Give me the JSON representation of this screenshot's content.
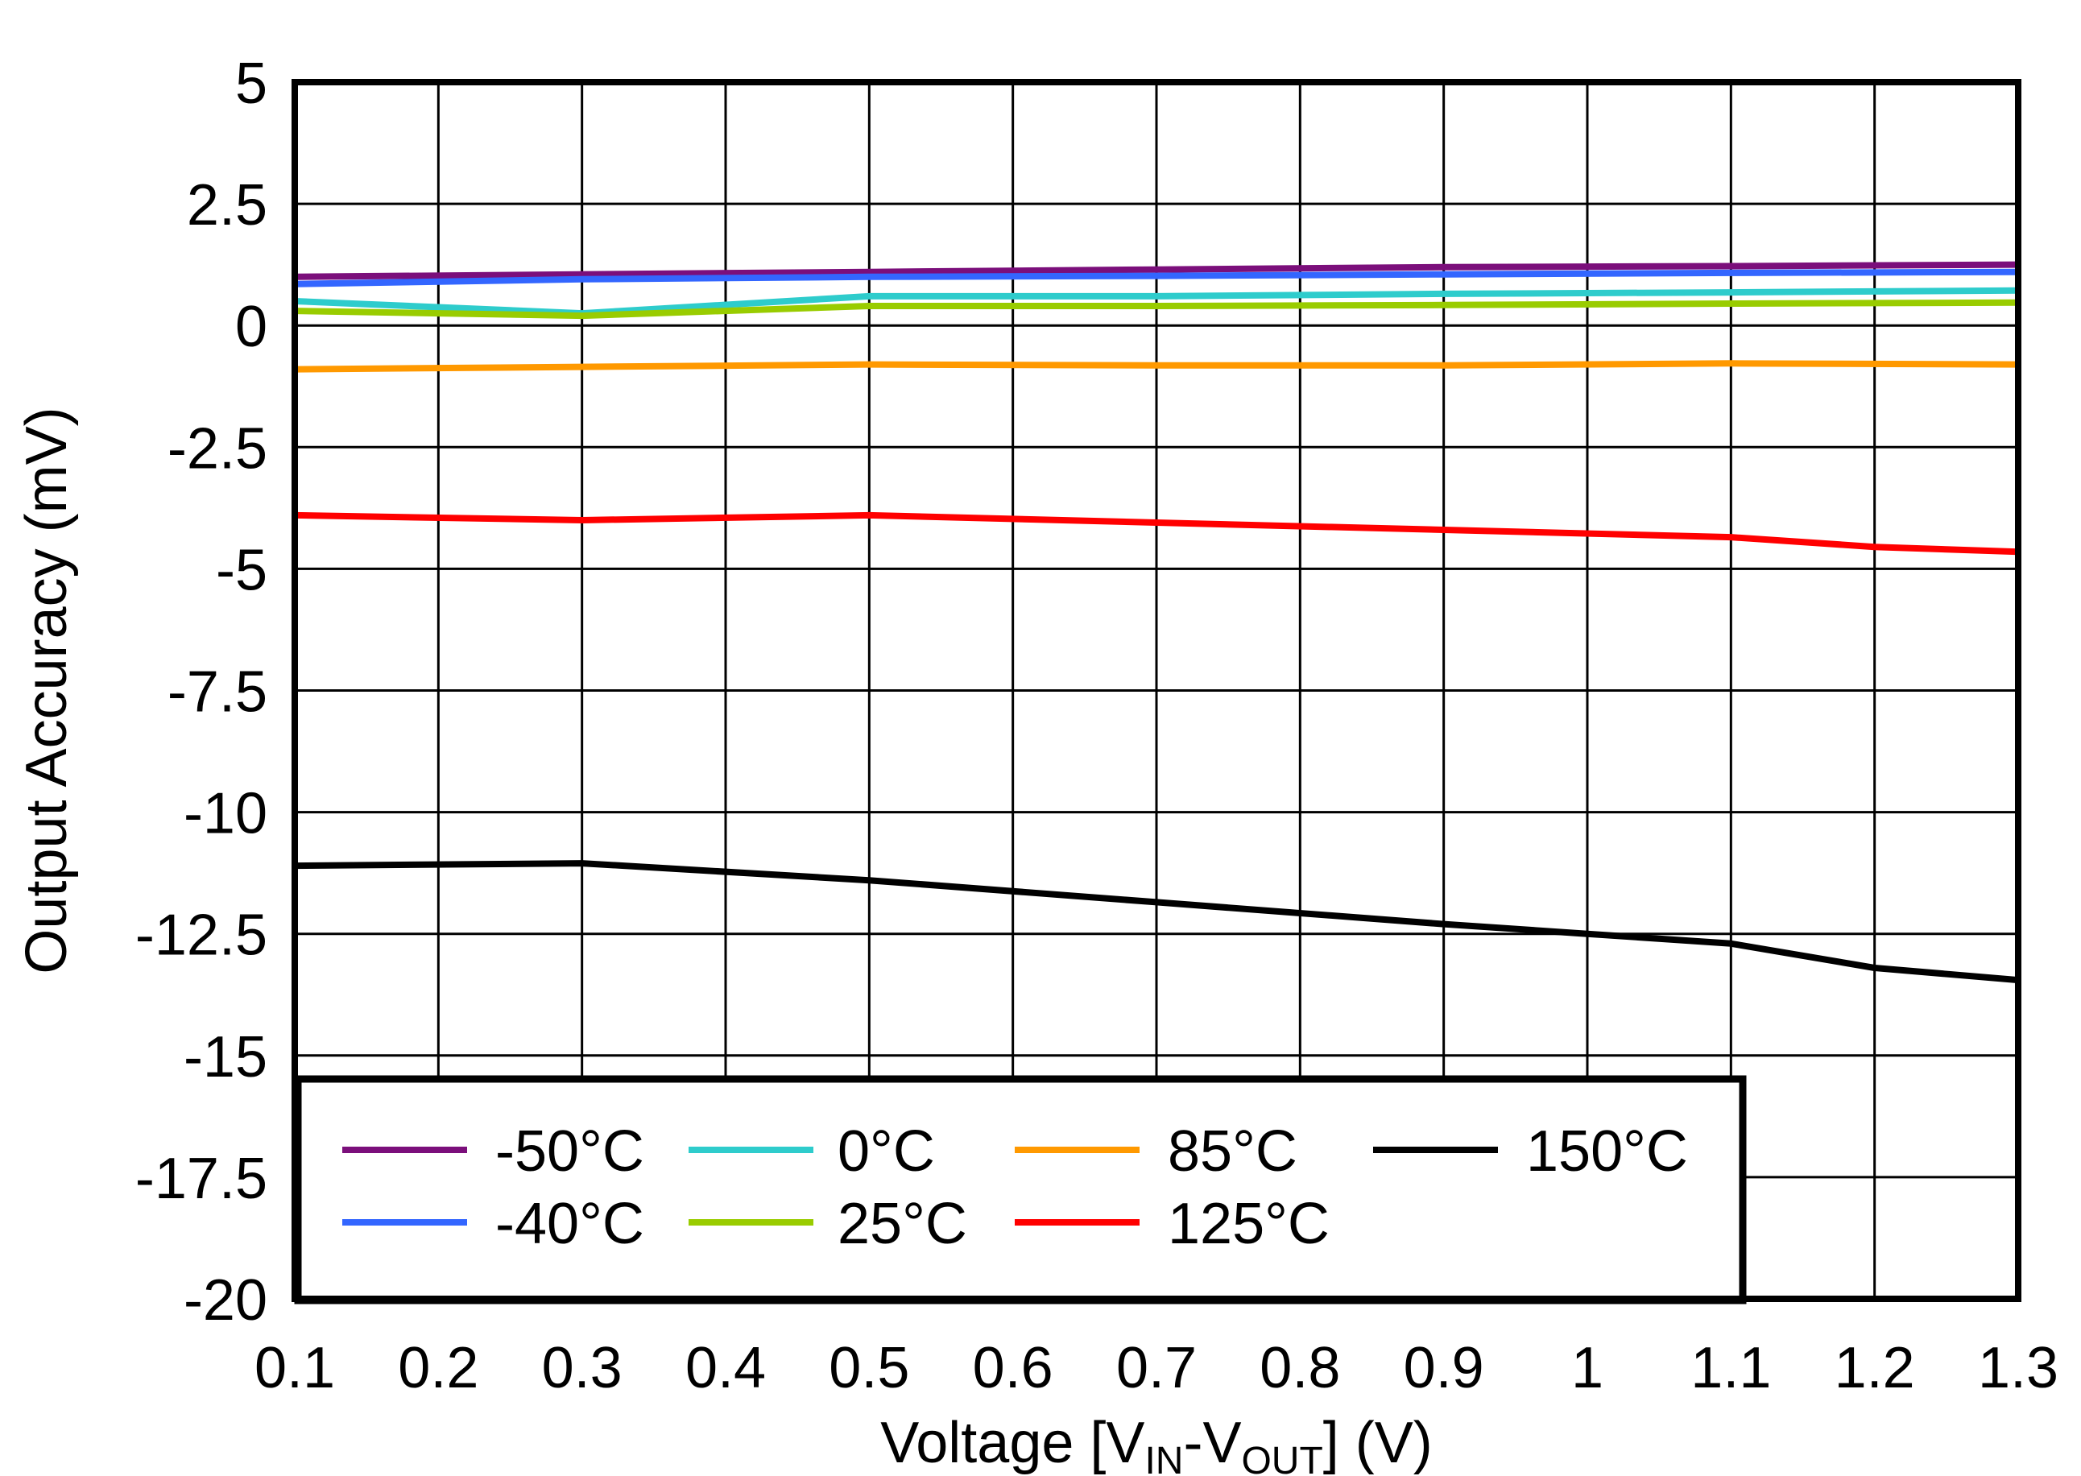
{
  "chart_data": {
    "type": "line",
    "title": "",
    "xlabel": "Voltage [VIN-VOUT] (V)",
    "xlabel_parts": {
      "main": "Voltage [V",
      "sub1": "IN",
      "mid": "-V",
      "sub2": "OUT",
      "end": "] (V)"
    },
    "ylabel": "Output Accuracy (mV)",
    "xlim": [
      0.1,
      1.3
    ],
    "ylim": [
      -20,
      5
    ],
    "x_ticks": [
      0.1,
      0.2,
      0.3,
      0.4,
      0.5,
      0.6,
      0.7,
      0.8,
      0.9,
      1,
      1.1,
      1.2,
      1.3
    ],
    "x_tick_labels": [
      "0.1",
      "0.2",
      "0.3",
      "0.4",
      "0.5",
      "0.6",
      "0.7",
      "0.8",
      "0.9",
      "1",
      "1.1",
      "1.2",
      "1.3"
    ],
    "y_ticks": [
      5,
      2.5,
      0,
      -2.5,
      -5,
      -7.5,
      -10,
      -12.5,
      -15,
      -17.5,
      -20
    ],
    "y_tick_labels": [
      "5",
      "2.5",
      "0",
      "-2.5",
      "-5",
      "-7.5",
      "-10",
      "-12.5",
      "-15",
      "-17.5",
      "-20"
    ],
    "grid": true,
    "legend_position": "bottom-left",
    "series": [
      {
        "name": "-50°C",
        "color": "#7B0F7B",
        "x": [
          0.1,
          0.3,
          0.5,
          0.7,
          0.9,
          1.1,
          1.3
        ],
        "values": [
          1.0,
          1.05,
          1.1,
          1.15,
          1.2,
          1.22,
          1.25
        ]
      },
      {
        "name": "-40°C",
        "color": "#3366FF",
        "x": [
          0.1,
          0.3,
          0.5,
          0.7,
          0.9,
          1.1,
          1.3
        ],
        "values": [
          0.85,
          0.95,
          1.0,
          1.02,
          1.05,
          1.08,
          1.1
        ]
      },
      {
        "name": "0°C",
        "color": "#2ECCCC",
        "x": [
          0.1,
          0.3,
          0.5,
          0.7,
          0.9,
          1.1,
          1.3
        ],
        "values": [
          0.5,
          0.25,
          0.6,
          0.6,
          0.65,
          0.68,
          0.72
        ]
      },
      {
        "name": "25°C",
        "color": "#99CC00",
        "x": [
          0.1,
          0.3,
          0.5,
          0.7,
          0.9,
          1.1,
          1.3
        ],
        "values": [
          0.3,
          0.2,
          0.4,
          0.4,
          0.42,
          0.45,
          0.47
        ]
      },
      {
        "name": "85°C",
        "color": "#FF9900",
        "x": [
          0.1,
          0.3,
          0.5,
          0.7,
          0.9,
          1.1,
          1.3
        ],
        "values": [
          -0.9,
          -0.85,
          -0.8,
          -0.82,
          -0.82,
          -0.78,
          -0.8
        ]
      },
      {
        "name": "125°C",
        "color": "#FF0000",
        "x": [
          0.1,
          0.3,
          0.5,
          0.7,
          0.9,
          1.1,
          1.2,
          1.3
        ],
        "values": [
          -3.9,
          -4.0,
          -3.9,
          -4.05,
          -4.2,
          -4.35,
          -4.55,
          -4.65
        ]
      },
      {
        "name": "150°C",
        "color": "#000000",
        "x": [
          0.1,
          0.3,
          0.5,
          0.7,
          0.9,
          1.0,
          1.1,
          1.2,
          1.3
        ],
        "values": [
          -11.1,
          -11.05,
          -11.4,
          -11.85,
          -12.3,
          -12.5,
          -12.7,
          -13.2,
          -13.45
        ]
      }
    ]
  }
}
